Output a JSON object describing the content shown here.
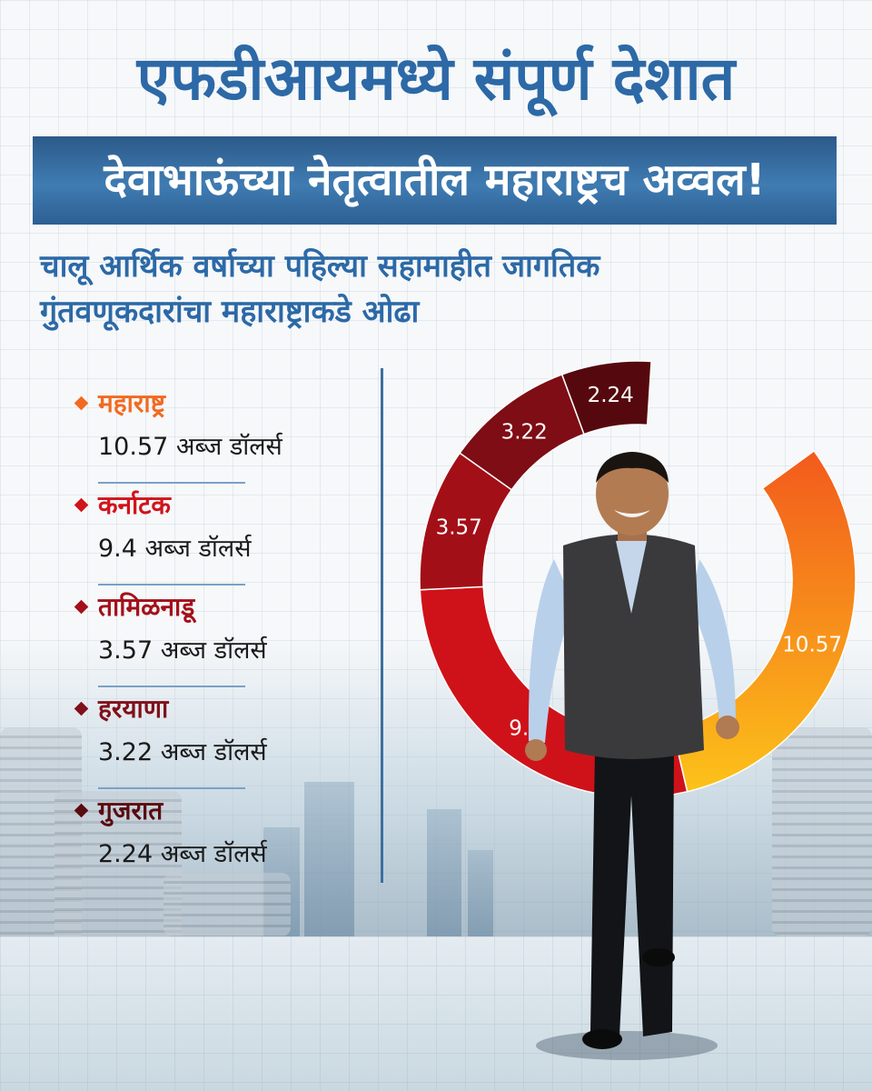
{
  "title_line1": "एफडीआयमध्ये संपूर्ण देशात",
  "title_line2": "देवाभाऊंच्या नेतृत्वातील महाराष्ट्रच अव्वल!",
  "subtitle_line1": "चालू आर्थिक वर्षाच्या पहिल्या सहामाहीत जागतिक",
  "subtitle_line2": "गुंतवणूकदारांचा महाराष्ट्राकडे ओढा",
  "legend": [
    {
      "name": "महाराष्ट्र",
      "value": "10.57 अब्ज डॉलर्स",
      "color": "#f26a21"
    },
    {
      "name": "कर्नाटक",
      "value": "9.4 अब्ज डॉलर्स",
      "color": "#d0141b"
    },
    {
      "name": "तामिळनाडू",
      "value": "3.57 अब्ज डॉलर्स",
      "color": "#a3101a"
    },
    {
      "name": "हरयाणा",
      "value": "3.22 अब्ज डॉलर्स",
      "color": "#801019"
    },
    {
      "name": "गुजरात",
      "value": "2.24 अब्ज डॉलर्स",
      "color": "#5a0b10"
    }
  ],
  "chart_data": {
    "type": "pie",
    "categories": [
      "महाराष्ट्र",
      "कर्नाटक",
      "तामिळनाडू",
      "हरयाणा",
      "गुजरात"
    ],
    "values": [
      10.57,
      9.4,
      3.57,
      3.22,
      2.24
    ],
    "data_labels": [
      "10.57",
      "9.4",
      "3.57",
      "3.22",
      "2.24"
    ],
    "colors": [
      "#f58220",
      "#cf1219",
      "#a30f17",
      "#7e0d15",
      "#55090e"
    ],
    "style": "donut"
  },
  "colors": {
    "title": "#2c69a6",
    "banner": "#336b9e",
    "divider": "#3c6f9e"
  }
}
